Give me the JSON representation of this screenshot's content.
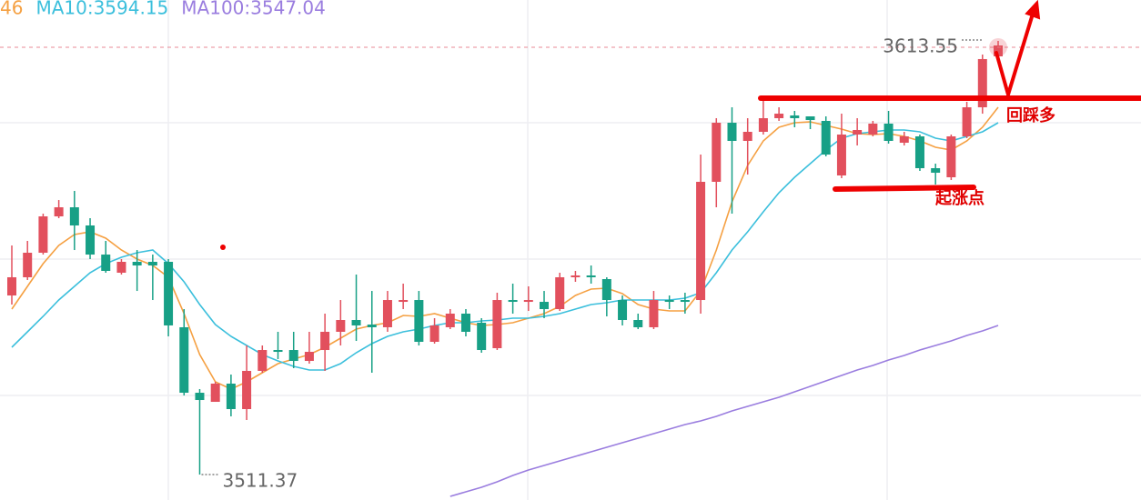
{
  "chart_data": {
    "type": "candlestick",
    "up_color": "#e2505d",
    "down_color": "#17a086",
    "ylim": [
      3505.38,
      3623.19
    ],
    "open": [
      3553.57,
      3557.86,
      3563.64,
      3572.21,
      3574.35,
      3570.07,
      3563.21,
      3558.93,
      3561.5,
      3561.5,
      3561.5,
      3546.08,
      3530.65,
      3528.51,
      3532.8,
      3526.8,
      3535.8,
      3540.72,
      3540.72,
      3538.15,
      3540.72,
      3545.01,
      3547.79,
      3546.72,
      3546.08,
      3552.07,
      3552.5,
      3542.65,
      3546.08,
      3549.29,
      3547.15,
      3541.15,
      3552.5,
      3552.07,
      3552.07,
      3550.36,
      3557.86,
      3558.29,
      3557.43,
      3552.5,
      3547.79,
      3546.08,
      3552.5,
      3552.5,
      3552.5,
      3580.35,
      3594.27,
      3589.99,
      3592.13,
      3595.34,
      3595.99,
      3595.77,
      3594.7,
      3581.85,
      3591.49,
      3591.49,
      3594.06,
      3589.56,
      3591.06,
      3583.56,
      3581.42,
      3591.06,
      3597.91,
      3609.91
    ],
    "high": [
      3565.35,
      3566.43,
      3572.85,
      3576.06,
      3578.21,
      3571.78,
      3566.43,
      3562.14,
      3564.28,
      3563.21,
      3562.14,
      3550.36,
      3531.51,
      3533.22,
      3534.94,
      3541.79,
      3541.79,
      3545.01,
      3545.01,
      3545.01,
      3549.29,
      3552.5,
      3558.5,
      3554.64,
      3554.64,
      3556.36,
      3554.64,
      3548.22,
      3550.36,
      3550.36,
      3548.22,
      3554.22,
      3556.36,
      3555.72,
      3554.64,
      3558.93,
      3559.36,
      3560.64,
      3557.86,
      3553.57,
      3549.29,
      3554.64,
      3553.57,
      3554.22,
      3586.77,
      3595.34,
      3597.91,
      3595.34,
      3600.06,
      3597.91,
      3597.06,
      3595.77,
      3595.77,
      3596.41,
      3595.34,
      3594.7,
      3597.06,
      3592.13,
      3591.49,
      3584.63,
      3591.49,
      3599.2,
      3610.34,
      3613.55
    ],
    "low": [
      3551.43,
      3557.22,
      3563.21,
      3571.78,
      3564.28,
      3562.14,
      3558.93,
      3558.5,
      3554.64,
      3552.5,
      3543.93,
      3530.01,
      3511.37,
      3528.51,
      3525.09,
      3524.23,
      3535.37,
      3538.58,
      3536.44,
      3537.51,
      3535.8,
      3541.79,
      3542.86,
      3535.37,
      3545.01,
      3550.36,
      3541.79,
      3542.22,
      3545.65,
      3543.93,
      3540.08,
      3540.72,
      3549.29,
      3549.93,
      3548.22,
      3549.93,
      3556.79,
      3556.36,
      3548.65,
      3546.51,
      3545.65,
      3545.65,
      3550.36,
      3549.29,
      3549.29,
      3574.35,
      3572.85,
      3582.06,
      3591.49,
      3594.7,
      3593.2,
      3592.77,
      3586.35,
      3581.21,
      3588.92,
      3591.06,
      3589.35,
      3588.92,
      3582.92,
      3579.71,
      3580.78,
      3590.63,
      3596.41,
      3609.27
    ],
    "close": [
      3557.86,
      3563.64,
      3572.21,
      3574.35,
      3570.07,
      3563.21,
      3559.36,
      3561.5,
      3560.64,
      3560.64,
      3546.51,
      3530.65,
      3528.94,
      3532.8,
      3526.8,
      3535.8,
      3540.72,
      3540.29,
      3538.15,
      3540.29,
      3545.01,
      3547.79,
      3546.51,
      3546.08,
      3552.5,
      3552.5,
      3542.65,
      3546.51,
      3549.29,
      3545.01,
      3540.72,
      3552.5,
      3552.07,
      3552.5,
      3550.36,
      3557.86,
      3558.29,
      3557.86,
      3552.5,
      3547.79,
      3546.08,
      3552.5,
      3552.07,
      3552.07,
      3580.35,
      3594.27,
      3589.99,
      3592.13,
      3595.34,
      3596.41,
      3595.34,
      3594.91,
      3586.77,
      3591.49,
      3592.56,
      3594.06,
      3589.99,
      3591.06,
      3583.56,
      3582.49,
      3591.06,
      3597.91,
      3609.27,
      3612.48
    ],
    "series": [
      {
        "name": "46",
        "color": "#f5a042",
        "values": [
          3550.36,
          3555.72,
          3561.07,
          3565.35,
          3567.93,
          3568.57,
          3567.07,
          3564.28,
          3562.14,
          3560.64,
          3557.86,
          3549.29,
          3539.65,
          3533.22,
          3531.51,
          3533.22,
          3535.37,
          3537.51,
          3538.58,
          3539.65,
          3541.36,
          3543.51,
          3545.65,
          3546.51,
          3547.15,
          3548.86,
          3548.65,
          3549.29,
          3548.22,
          3547.15,
          3546.51,
          3546.72,
          3547.15,
          3548.22,
          3549.29,
          3551.0,
          3553.57,
          3555.07,
          3555.29,
          3554.0,
          3551.43,
          3550.36,
          3549.93,
          3549.93,
          3554.64,
          3564.28,
          3575.64,
          3584.2,
          3589.99,
          3593.2,
          3594.27,
          3594.49,
          3593.63,
          3592.77,
          3591.7,
          3591.49,
          3591.7,
          3591.06,
          3589.99,
          3588.49,
          3587.85,
          3589.99,
          3593.2,
          3597.91
        ]
      },
      {
        "name": "MA10:3594.15",
        "color": "#3bbfdc",
        "values": [
          3541.36,
          3545.01,
          3548.65,
          3552.5,
          3555.72,
          3558.93,
          3561.07,
          3562.57,
          3563.64,
          3564.28,
          3561.07,
          3556.79,
          3551.43,
          3546.72,
          3543.93,
          3541.79,
          3539.65,
          3538.15,
          3536.87,
          3536.01,
          3536.01,
          3537.51,
          3540.08,
          3542.22,
          3543.93,
          3545.01,
          3545.65,
          3546.51,
          3547.15,
          3547.15,
          3547.58,
          3547.79,
          3548.22,
          3548.22,
          3548.65,
          3549.29,
          3550.36,
          3551.43,
          3551.86,
          3552.5,
          3552.5,
          3552.5,
          3552.5,
          3552.93,
          3554.22,
          3558.93,
          3564.28,
          3568.57,
          3573.28,
          3577.78,
          3581.42,
          3584.63,
          3587.85,
          3590.63,
          3591.7,
          3592.13,
          3592.56,
          3592.56,
          3592.13,
          3590.63,
          3589.99,
          3591.06,
          3592.13,
          3594.27
        ]
      },
      {
        "name": "MA100:3547.04",
        "color": "#9a7ddf",
        "values": [
          null,
          null,
          null,
          null,
          null,
          null,
          null,
          null,
          null,
          null,
          null,
          null,
          null,
          null,
          null,
          null,
          null,
          null,
          null,
          null,
          null,
          null,
          null,
          null,
          null,
          null,
          null,
          null,
          3506.24,
          3507.31,
          3508.38,
          3509.66,
          3511.16,
          3512.45,
          3513.52,
          3514.59,
          3515.66,
          3516.73,
          3517.8,
          3518.87,
          3519.94,
          3521.02,
          3522.09,
          3523.16,
          3524.01,
          3525.09,
          3526.37,
          3527.44,
          3528.51,
          3529.58,
          3530.87,
          3532.15,
          3533.44,
          3534.72,
          3536.01,
          3537.08,
          3538.37,
          3539.44,
          3540.72,
          3541.79,
          3542.86,
          3544.15,
          3545.22,
          3546.51
        ]
      }
    ],
    "annotations": [
      "回踩多",
      "起涨点"
    ]
  }
}
